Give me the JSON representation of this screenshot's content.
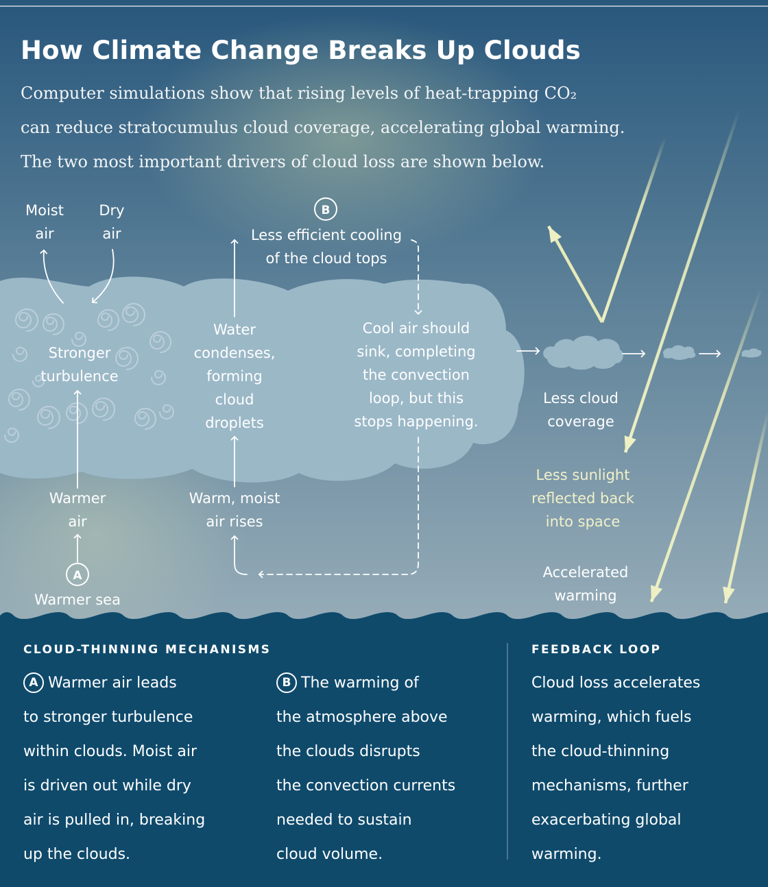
{
  "header": {
    "title": "How Climate Change Breaks Up Clouds",
    "subtitle_lines": [
      "Computer simulations show that rising levels of heat-trapping CO₂",
      "can reduce stratocumulus cloud coverage, accelerating global warming.",
      "The two most important drivers of cloud loss are shown below."
    ]
  },
  "diagram": {
    "moist_air": [
      "Moist",
      "air"
    ],
    "dry_air": [
      "Dry",
      "air"
    ],
    "stronger_turbulence": [
      "Stronger",
      "turbulence"
    ],
    "warmer_air": [
      "Warmer",
      "air"
    ],
    "warmer_sea": "Warmer sea",
    "marker_a": "A",
    "marker_b": "B",
    "less_efficient_cooling": [
      "Less efficient cooling",
      "of the cloud tops"
    ],
    "water_condenses": [
      "Water",
      "condenses,",
      "forming",
      "cloud",
      "droplets"
    ],
    "warm_moist_air_rises": [
      "Warm, moist",
      "air rises"
    ],
    "cool_air_sink": [
      "Cool air should",
      "sink, completing",
      "the convection",
      "loop, but this",
      "stops happening."
    ],
    "less_cloud_coverage": [
      "Less cloud",
      "coverage"
    ],
    "less_sunlight": [
      "Less sunlight",
      "reflected back",
      "into space"
    ],
    "accelerated_warming": [
      "Accelerated",
      "warming"
    ]
  },
  "mechanisms": {
    "heading": "CLOUD-THINNING MECHANISMS",
    "a_badge": "A",
    "a_lines": [
      "Warmer air leads",
      "to stronger turbulence",
      "within clouds. Moist air",
      "is driven out while dry",
      "air is pulled in, breaking",
      "up the clouds."
    ],
    "b_badge": "B",
    "b_lines": [
      "The warming of",
      "the atmosphere above",
      "the clouds disrupts",
      "the convection currents",
      "needed to sustain",
      "cloud volume."
    ]
  },
  "feedback": {
    "heading": "FEEDBACK LOOP",
    "lines": [
      "Cloud loss accelerates",
      "warming, which fuels",
      "the cloud-thinning",
      "mechanisms, further",
      "exacerbating global",
      "warming."
    ]
  },
  "colors": {
    "sky_top": "#2d5d82",
    "sky_bottom": "#93a9b6",
    "cloud": "#9ab8c7",
    "ocean": "#0f4a6b",
    "sunlight": "#e7ebb9"
  }
}
